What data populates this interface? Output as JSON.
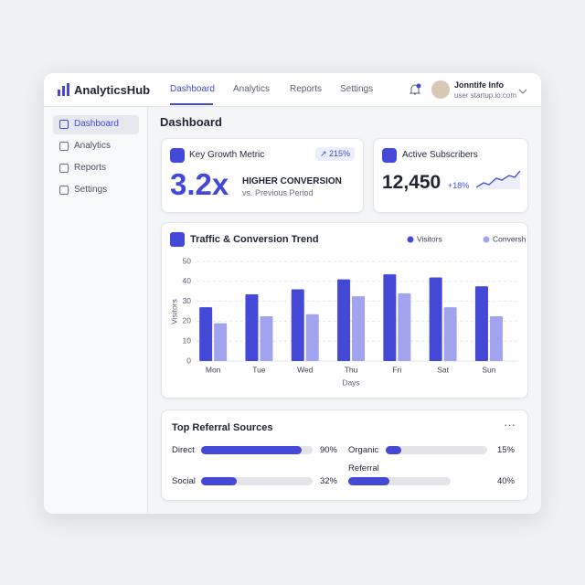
{
  "header": {
    "brand": "AnalyticsHub",
    "nav": [
      "Dashboard",
      "Analytics",
      "Reports",
      "Settings"
    ],
    "user_name": "Jonntife Info",
    "user_email": "user startup.io.com"
  },
  "sidebar": {
    "items": [
      "Dashboard",
      "Analytics",
      "Reports",
      "Settings"
    ]
  },
  "page_title": "Dashboard",
  "metric_card": {
    "title": "Key Growth Metric",
    "badge": "215%",
    "value": "3.2x",
    "headline": "HIGHER CONVERSION",
    "subtext": "vs. Previous Period"
  },
  "subscribers_card": {
    "title": "Active Subscribers",
    "value": "12,450",
    "change": "+18%"
  },
  "chart_data": {
    "type": "bar",
    "title": "Traffic & Conversion Trend",
    "categories": [
      "Mon",
      "Tue",
      "Wed",
      "Thu",
      "Fri",
      "Sat",
      "Sun"
    ],
    "series": [
      {
        "name": "Visitors",
        "color": "#4349d6",
        "values": [
          27,
          33.5,
          36,
          41,
          43.5,
          42,
          37.5
        ]
      },
      {
        "name": "Conversh Legend",
        "color": "#a2a3ee",
        "values": [
          19,
          22.5,
          23.5,
          32.5,
          34,
          27,
          22.5
        ]
      }
    ],
    "ylim": [
      0,
      50
    ],
    "yticks": [
      0,
      10,
      20,
      30,
      40,
      50
    ],
    "y_label": "Visitors",
    "x_label": "Days",
    "grid": true,
    "legend": "top-right"
  },
  "referrals": {
    "title": "Top Referral Sources",
    "items": [
      {
        "name": "Direct",
        "value": 90,
        "label": "90%"
      },
      {
        "name": "Organic",
        "value": 15,
        "label": "15%"
      },
      {
        "name": "Social",
        "value": 32,
        "label": "32%"
      },
      {
        "name": "Referral",
        "value": 40,
        "label": "40%"
      }
    ]
  }
}
